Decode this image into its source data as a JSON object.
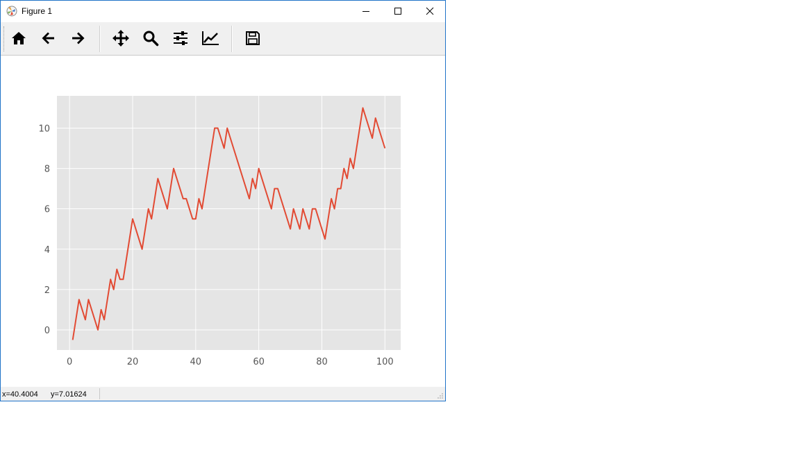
{
  "window": {
    "title": "Figure 1"
  },
  "toolbar": {
    "buttons": [
      {
        "name": "home",
        "icon": "home-icon"
      },
      {
        "name": "back",
        "icon": "arrow-left-icon"
      },
      {
        "name": "forward",
        "icon": "arrow-right-icon"
      },
      {
        "name": "pan",
        "icon": "move-icon"
      },
      {
        "name": "zoom",
        "icon": "magnifier-icon"
      },
      {
        "name": "configure-subplots",
        "icon": "sliders-icon"
      },
      {
        "name": "edit-axis",
        "icon": "line-chart-icon"
      },
      {
        "name": "save",
        "icon": "floppy-disk-icon"
      }
    ]
  },
  "status": {
    "x_readout": "x=40.4004",
    "y_readout": "y=7.01624"
  },
  "chart_data": {
    "type": "line",
    "style": "ggplot",
    "line_color": "#e24a33",
    "background": "#e5e5e5",
    "grid": true,
    "xlim": [
      -4,
      105
    ],
    "ylim": [
      -1.0,
      11.6
    ],
    "xticks": [
      0,
      20,
      40,
      60,
      80,
      100
    ],
    "yticks": [
      0,
      2,
      4,
      6,
      8,
      10
    ],
    "xtick_labels": [
      "0",
      "20",
      "40",
      "60",
      "80",
      "100"
    ],
    "ytick_labels": [
      "0",
      "2",
      "4",
      "6",
      "8",
      "10"
    ],
    "x": [
      1,
      3,
      5,
      6,
      9,
      10,
      11,
      13,
      14,
      15,
      16,
      17,
      20,
      23,
      25,
      26,
      28,
      31,
      33,
      36,
      37,
      39,
      40,
      41,
      42,
      46,
      47,
      49,
      50,
      57,
      58,
      59,
      60,
      64,
      65,
      66,
      70,
      71,
      73,
      74,
      76,
      77,
      78,
      81,
      83,
      84,
      85,
      86,
      87,
      88,
      89,
      90,
      93,
      96,
      97,
      100
    ],
    "y": [
      -0.5,
      1.5,
      0.5,
      1.5,
      0,
      1,
      0.5,
      2.5,
      2,
      3,
      2.5,
      2.5,
      5.5,
      4,
      6,
      5.5,
      7.5,
      6,
      8,
      6.5,
      6.5,
      5.5,
      5.5,
      6.5,
      6,
      10,
      10,
      9,
      10,
      6.5,
      7.5,
      7,
      8,
      6,
      7,
      7,
      5,
      6,
      5,
      6,
      5,
      6,
      6,
      4.5,
      6.5,
      6,
      7,
      7,
      8,
      7.5,
      8.5,
      8,
      11,
      9.5,
      10.5,
      9
    ]
  }
}
